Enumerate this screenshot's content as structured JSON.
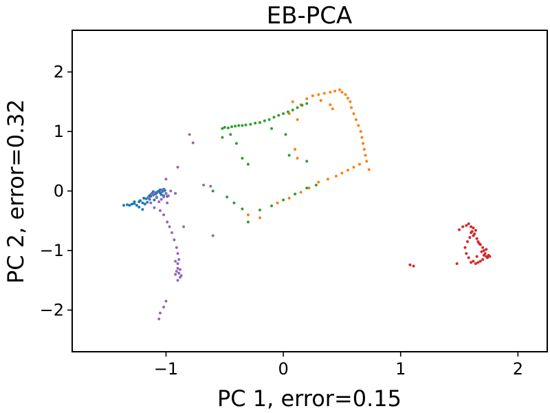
{
  "chart_data": {
    "type": "scatter",
    "title": "EB-PCA",
    "xlabel": "PC 1, error=0.15",
    "ylabel": "PC 2, error=0.32",
    "xlim": [
      -1.8,
      2.25
    ],
    "ylim": [
      -2.7,
      2.7
    ],
    "xticks": [
      -1,
      0,
      1,
      2
    ],
    "yticks": [
      -2,
      -1,
      0,
      1,
      2
    ],
    "xtick_labels": [
      "−1",
      "0",
      "1",
      "2"
    ],
    "ytick_labels": [
      "−2",
      "−1",
      "0",
      "1",
      "2"
    ],
    "grid": false,
    "legend": "none",
    "series": [
      {
        "color": "#1f77b4",
        "points": [
          [
            -1.36,
            -0.24
          ],
          [
            -1.33,
            -0.23
          ],
          [
            -1.31,
            -0.24
          ],
          [
            -1.29,
            -0.22
          ],
          [
            -1.27,
            -0.21
          ],
          [
            -1.25,
            -0.24
          ],
          [
            -1.23,
            -0.18
          ],
          [
            -1.22,
            -0.16
          ],
          [
            -1.2,
            -0.2
          ],
          [
            -1.19,
            -0.12
          ],
          [
            -1.17,
            -0.13
          ],
          [
            -1.15,
            -0.1
          ],
          [
            -1.14,
            -0.08
          ],
          [
            -1.13,
            -0.06
          ],
          [
            -1.12,
            -0.04
          ],
          [
            -1.11,
            -0.07
          ],
          [
            -1.1,
            -0.02
          ],
          [
            -1.09,
            -0.05
          ],
          [
            -1.08,
            -0.03
          ],
          [
            -1.07,
            -0.01
          ],
          [
            -1.06,
            0.0
          ],
          [
            -1.05,
            -0.03
          ],
          [
            -1.04,
            -0.06
          ],
          [
            -1.03,
            -0.01
          ],
          [
            -1.02,
            -0.08
          ],
          [
            -1.01,
            0.01
          ],
          [
            -1.0,
            -0.04
          ],
          [
            -0.99,
            -0.09
          ],
          [
            -1.23,
            -0.27
          ],
          [
            -1.2,
            -0.31
          ],
          [
            -1.18,
            -0.22
          ],
          [
            -1.27,
            -0.18
          ],
          [
            -1.1,
            -0.15
          ],
          [
            -1.13,
            -0.09
          ],
          [
            -1.16,
            -0.19
          ],
          [
            -1.05,
            0.02
          ],
          [
            -1.08,
            -0.11
          ],
          [
            -1.02,
            0.03
          ],
          [
            -1.11,
            -0.01
          ],
          [
            -1.14,
            -0.14
          ]
        ]
      },
      {
        "color": "#ff7f0e",
        "points": [
          [
            0.2,
            1.55
          ],
          [
            0.25,
            1.6
          ],
          [
            0.3,
            1.62
          ],
          [
            0.35,
            1.64
          ],
          [
            0.4,
            1.66
          ],
          [
            0.44,
            1.68
          ],
          [
            0.48,
            1.7
          ],
          [
            0.5,
            1.66
          ],
          [
            0.53,
            1.62
          ],
          [
            0.55,
            1.56
          ],
          [
            0.57,
            1.5
          ],
          [
            0.58,
            1.4
          ],
          [
            0.6,
            1.3
          ],
          [
            0.62,
            1.2
          ],
          [
            0.64,
            1.1
          ],
          [
            0.66,
            1.0
          ],
          [
            0.67,
            0.9
          ],
          [
            0.68,
            0.8
          ],
          [
            0.69,
            0.7
          ],
          [
            0.7,
            0.6
          ],
          [
            0.71,
            0.5
          ],
          [
            0.73,
            0.36
          ],
          [
            0.65,
            0.45
          ],
          [
            0.6,
            0.4
          ],
          [
            0.55,
            0.35
          ],
          [
            0.5,
            0.3
          ],
          [
            0.45,
            0.25
          ],
          [
            0.38,
            0.2
          ],
          [
            0.3,
            0.15
          ],
          [
            0.22,
            0.05
          ],
          [
            0.15,
            -0.02
          ],
          [
            0.05,
            -0.12
          ],
          [
            -0.05,
            -0.2
          ],
          [
            -0.2,
            -0.45
          ],
          [
            -0.3,
            -0.4
          ],
          [
            0.12,
            0.55
          ],
          [
            0.1,
            0.7
          ],
          [
            0.12,
            1.2
          ],
          [
            0.05,
            1.3
          ],
          [
            0.15,
            1.45
          ],
          [
            0.08,
            1.5
          ],
          [
            0.32,
            1.52
          ],
          [
            0.4,
            1.45
          ],
          [
            0.42,
            1.38
          ]
        ]
      },
      {
        "color": "#2ca02c",
        "points": [
          [
            -0.5,
            1.07
          ],
          [
            -0.47,
            1.06
          ],
          [
            -0.44,
            1.08
          ],
          [
            -0.41,
            1.09
          ],
          [
            -0.38,
            1.1
          ],
          [
            -0.35,
            1.1
          ],
          [
            -0.32,
            1.11
          ],
          [
            -0.28,
            1.12
          ],
          [
            -0.24,
            1.14
          ],
          [
            -0.2,
            1.15
          ],
          [
            -0.16,
            1.18
          ],
          [
            -0.12,
            1.2
          ],
          [
            -0.08,
            1.24
          ],
          [
            -0.04,
            1.27
          ],
          [
            0.0,
            1.3
          ],
          [
            0.04,
            1.33
          ],
          [
            0.08,
            1.36
          ],
          [
            0.12,
            1.4
          ],
          [
            0.16,
            1.44
          ],
          [
            0.2,
            1.47
          ],
          [
            -0.52,
            0.9
          ],
          [
            -0.45,
            0.95
          ],
          [
            -0.4,
            0.8
          ],
          [
            -0.35,
            0.55
          ],
          [
            -0.3,
            0.45
          ],
          [
            -0.48,
            -0.1
          ],
          [
            -0.42,
            -0.2
          ],
          [
            -0.35,
            -0.3
          ],
          [
            -0.3,
            -0.52
          ],
          [
            -0.2,
            -0.32
          ],
          [
            -0.1,
            -0.25
          ],
          [
            0.0,
            -0.15
          ],
          [
            0.1,
            -0.05
          ],
          [
            0.2,
            0.05
          ],
          [
            0.28,
            0.1
          ],
          [
            0.05,
            0.6
          ],
          [
            0.2,
            0.5
          ],
          [
            -0.52,
            1.05
          ],
          [
            -0.6,
            0.0
          ],
          [
            -0.1,
            1.05
          ],
          [
            0.02,
            0.95
          ]
        ]
      },
      {
        "color": "#d62728",
        "points": [
          [
            1.5,
            -0.65
          ],
          [
            1.53,
            -0.6
          ],
          [
            1.56,
            -0.58
          ],
          [
            1.58,
            -0.55
          ],
          [
            1.6,
            -0.6
          ],
          [
            1.62,
            -0.62
          ],
          [
            1.64,
            -0.66
          ],
          [
            1.6,
            -0.7
          ],
          [
            1.62,
            -0.75
          ],
          [
            1.65,
            -0.8
          ],
          [
            1.66,
            -0.85
          ],
          [
            1.68,
            -0.9
          ],
          [
            1.7,
            -0.95
          ],
          [
            1.71,
            -1.0
          ],
          [
            1.72,
            -1.05
          ],
          [
            1.73,
            -1.1
          ],
          [
            1.74,
            -1.12
          ],
          [
            1.75,
            -1.08
          ],
          [
            1.76,
            -1.1
          ],
          [
            1.7,
            -1.15
          ],
          [
            1.68,
            -1.18
          ],
          [
            1.66,
            -1.2
          ],
          [
            1.64,
            -1.22
          ],
          [
            1.62,
            -1.18
          ],
          [
            1.6,
            -1.2
          ],
          [
            1.58,
            -1.12
          ],
          [
            1.56,
            -1.05
          ],
          [
            1.55,
            -0.95
          ],
          [
            1.57,
            -0.85
          ],
          [
            1.59,
            -0.78
          ],
          [
            1.61,
            -0.68
          ],
          [
            1.63,
            -0.72
          ],
          [
            1.67,
            -0.88
          ],
          [
            1.69,
            -1.02
          ],
          [
            1.71,
            -1.08
          ],
          [
            1.73,
            -0.98
          ],
          [
            1.65,
            -1.1
          ],
          [
            1.48,
            -1.22
          ],
          [
            1.08,
            -1.24
          ],
          [
            1.11,
            -1.26
          ]
        ]
      },
      {
        "color": "#9467bd",
        "points": [
          [
            -1.15,
            -0.12
          ],
          [
            -1.12,
            -0.06
          ],
          [
            -1.1,
            -0.02
          ],
          [
            -1.08,
            -0.1
          ],
          [
            -1.06,
            -0.18
          ],
          [
            -1.04,
            -0.14
          ],
          [
            -1.02,
            -0.1
          ],
          [
            -1.0,
            -0.04
          ],
          [
            -0.98,
            -0.08
          ],
          [
            -0.96,
            0.0
          ],
          [
            -1.03,
            0.02
          ],
          [
            -0.99,
            -0.2
          ],
          [
            -0.92,
            -0.04
          ],
          [
            -1.05,
            -0.33
          ],
          [
            -1.02,
            -0.4
          ],
          [
            -0.99,
            -0.52
          ],
          [
            -0.97,
            -0.6
          ],
          [
            -0.95,
            -0.7
          ],
          [
            -0.93,
            -0.82
          ],
          [
            -0.91,
            -0.95
          ],
          [
            -0.9,
            -1.05
          ],
          [
            -0.89,
            -1.15
          ],
          [
            -0.9,
            -1.22
          ],
          [
            -0.9,
            -1.3
          ],
          [
            -0.89,
            -1.38
          ],
          [
            -0.88,
            -1.45
          ],
          [
            -0.9,
            -1.5
          ],
          [
            -0.92,
            -1.4
          ],
          [
            -0.91,
            -1.35
          ],
          [
            -0.88,
            -1.32
          ],
          [
            -0.87,
            -1.42
          ],
          [
            -0.92,
            -1.18
          ],
          [
            -1.0,
            -1.85
          ],
          [
            -1.02,
            -1.95
          ],
          [
            -1.05,
            -2.05
          ],
          [
            -1.06,
            -2.15
          ],
          [
            -0.8,
            0.95
          ],
          [
            -0.77,
            0.81
          ],
          [
            -0.9,
            0.4
          ],
          [
            -1.0,
            0.2
          ],
          [
            -0.85,
            -0.6
          ],
          [
            -0.6,
            -0.75
          ],
          [
            -0.62,
            0.08
          ],
          [
            -0.68,
            0.1
          ],
          [
            -1.1,
            -0.28
          ],
          [
            -1.13,
            -0.2
          ]
        ]
      }
    ]
  }
}
